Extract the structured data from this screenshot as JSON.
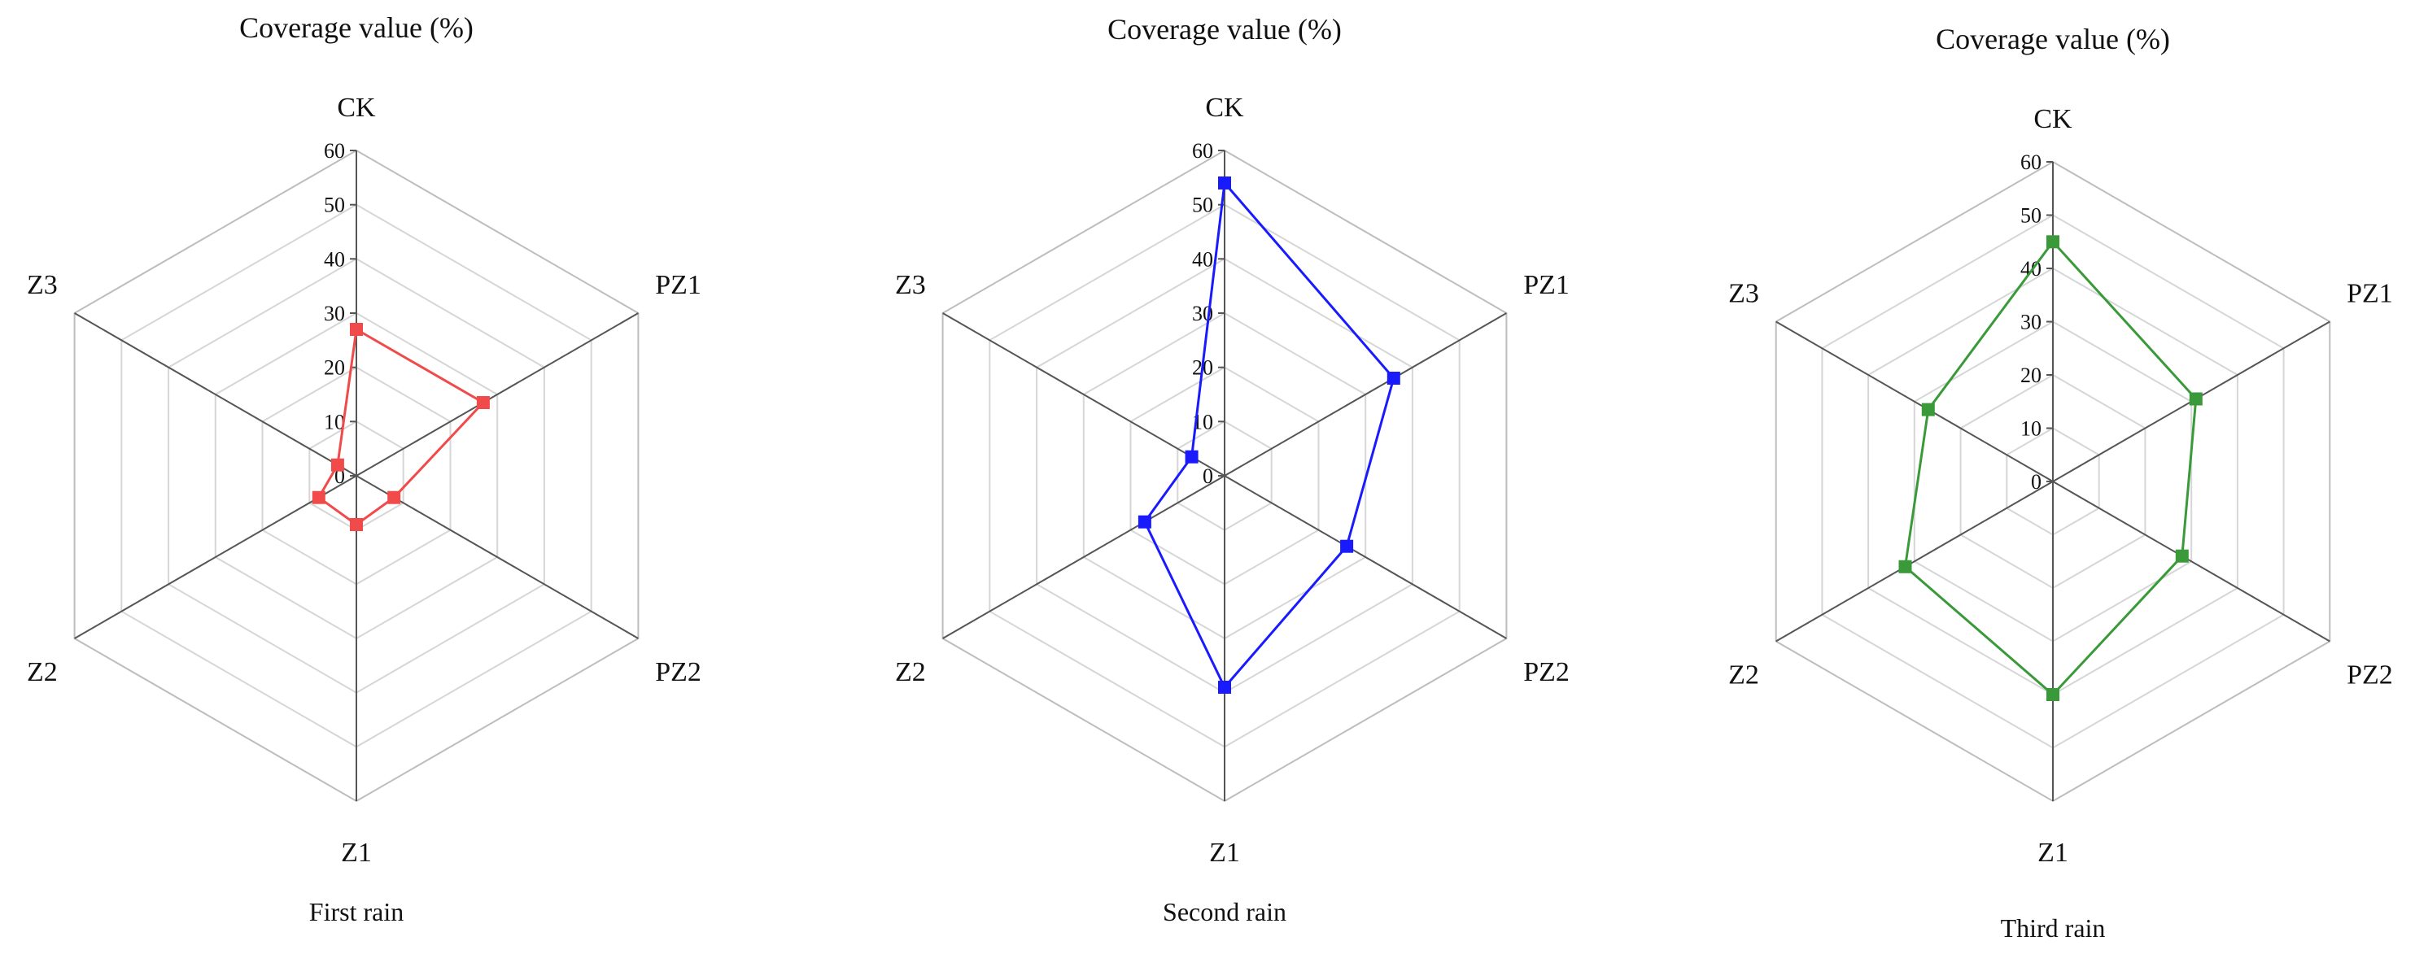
{
  "chart_data": [
    {
      "type": "radar",
      "title": "Coverage value (%)",
      "caption": "First rain",
      "axes": [
        "CK",
        "PZ1",
        "PZ2",
        "Z1",
        "Z2",
        "Z3"
      ],
      "rlim": [
        0,
        60
      ],
      "ticks": [
        0,
        10,
        20,
        30,
        40,
        50,
        60
      ],
      "grid": true,
      "series": [
        {
          "values": [
            27,
            27,
            8,
            9,
            8,
            4
          ],
          "color": "#f04a4a",
          "marker": "square"
        }
      ]
    },
    {
      "type": "radar",
      "title": "Coverage value (%)",
      "caption": "Second rain",
      "axes": [
        "CK",
        "PZ1",
        "PZ2",
        "Z1",
        "Z2",
        "Z3"
      ],
      "rlim": [
        0,
        60
      ],
      "ticks": [
        0,
        10,
        20,
        30,
        40,
        50,
        60
      ],
      "grid": true,
      "series": [
        {
          "values": [
            54,
            36,
            26,
            39,
            17,
            7
          ],
          "color": "#1a1aff",
          "marker": "square"
        }
      ]
    },
    {
      "type": "radar",
      "title": "Coverage value (%)",
      "caption": "Third rain",
      "axes": [
        "CK",
        "PZ1",
        "PZ2",
        "Z1",
        "Z2",
        "Z3"
      ],
      "rlim": [
        0,
        60
      ],
      "ticks": [
        0,
        10,
        20,
        30,
        40,
        50,
        60
      ],
      "grid": true,
      "series": [
        {
          "values": [
            45,
            31,
            28,
            40,
            32,
            27
          ],
          "color": "#3a9a3a",
          "marker": "square"
        }
      ]
    }
  ]
}
